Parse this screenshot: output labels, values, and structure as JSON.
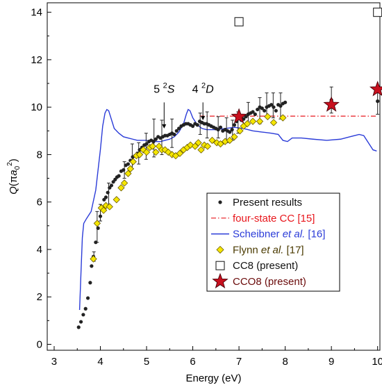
{
  "chart_data": {
    "type": "scatter",
    "xlabel": "Energy (eV)",
    "ylabel_parts": {
      "q": "Q",
      "open": "(π",
      "a": "a",
      "sub": "0",
      "sup": "2",
      "close": ")"
    },
    "xlim": [
      2.85,
      10.05
    ],
    "ylim": [
      -0.25,
      14.4
    ],
    "xticks": [
      3,
      4,
      5,
      6,
      7,
      8,
      9,
      10
    ],
    "yticks": [
      0,
      2,
      4,
      6,
      8,
      10,
      12,
      14
    ],
    "grid": false,
    "legend_position": "lower-right",
    "annotations": [
      {
        "pre": "5",
        "sup": "2",
        "sym": "S",
        "x": 5.38,
        "y_text": 10.6,
        "y_arrow_start": 10.2,
        "y_arrow_end": 9.1
      },
      {
        "pre": "4",
        "sup": "2",
        "sym": "D",
        "x": 6.22,
        "y_text": 10.6,
        "y_arrow_start": 10.2,
        "y_arrow_end": 9.45
      }
    ],
    "series": [
      {
        "name": "Present results",
        "marker": "dot",
        "color": "#222222",
        "points": [
          [
            3.53,
            0.72
          ],
          [
            3.58,
            0.95
          ],
          [
            3.63,
            1.25
          ],
          [
            3.68,
            1.5
          ],
          [
            3.73,
            1.95
          ],
          [
            3.78,
            2.6
          ],
          [
            3.81,
            3.3
          ],
          [
            3.85,
            3.7
          ],
          [
            3.9,
            4.3
          ],
          [
            3.95,
            4.9
          ],
          [
            4.0,
            5.4
          ],
          [
            4.04,
            5.7
          ],
          [
            4.08,
            6.1
          ],
          [
            4.12,
            6.2
          ],
          [
            4.16,
            6.4
          ],
          [
            4.2,
            6.6
          ],
          [
            4.24,
            6.7
          ],
          [
            4.28,
            6.85
          ],
          [
            4.32,
            6.95
          ],
          [
            4.36,
            7.05
          ],
          [
            4.4,
            7.1
          ],
          [
            4.45,
            7.3
          ],
          [
            4.5,
            7.35
          ],
          [
            4.55,
            7.55
          ],
          [
            4.6,
            7.6
          ],
          [
            4.65,
            7.75
          ],
          [
            4.7,
            7.9
          ],
          [
            4.75,
            7.95
          ],
          [
            4.8,
            8.05
          ],
          [
            4.85,
            8.2
          ],
          [
            4.9,
            8.3
          ],
          [
            4.95,
            8.4
          ],
          [
            5.0,
            8.45
          ],
          [
            5.05,
            8.55
          ],
          [
            5.1,
            8.6
          ],
          [
            5.15,
            8.55
          ],
          [
            5.2,
            8.65
          ],
          [
            5.25,
            8.75
          ],
          [
            5.3,
            8.7
          ],
          [
            5.35,
            8.75
          ],
          [
            5.4,
            8.8
          ],
          [
            5.45,
            8.8
          ],
          [
            5.5,
            8.85
          ],
          [
            5.55,
            8.9
          ],
          [
            5.6,
            8.85
          ],
          [
            5.65,
            9.0
          ],
          [
            5.7,
            9.1
          ],
          [
            5.75,
            9.2
          ],
          [
            5.8,
            9.25
          ],
          [
            5.85,
            9.3
          ],
          [
            5.9,
            9.3
          ],
          [
            5.95,
            9.25
          ],
          [
            6.0,
            9.2
          ],
          [
            6.05,
            9.3
          ],
          [
            6.1,
            9.25
          ],
          [
            6.15,
            9.4
          ],
          [
            6.2,
            9.35
          ],
          [
            6.25,
            9.3
          ],
          [
            6.3,
            9.3
          ],
          [
            6.35,
            9.25
          ],
          [
            6.4,
            9.2
          ],
          [
            6.45,
            9.15
          ],
          [
            6.5,
            9.1
          ],
          [
            6.55,
            9.05
          ],
          [
            6.6,
            9.15
          ],
          [
            6.65,
            9.0
          ],
          [
            6.7,
            9.05
          ],
          [
            6.75,
            9.0
          ],
          [
            6.8,
            8.95
          ],
          [
            6.85,
            9.05
          ],
          [
            6.9,
            9.25
          ],
          [
            6.95,
            9.4
          ],
          [
            7.05,
            9.45
          ],
          [
            7.1,
            9.5
          ],
          [
            7.15,
            9.6
          ],
          [
            7.2,
            9.7
          ],
          [
            7.25,
            9.75
          ],
          [
            7.3,
            9.8
          ],
          [
            7.35,
            9.7
          ],
          [
            7.4,
            9.9
          ],
          [
            7.45,
            10.0
          ],
          [
            7.5,
            9.95
          ],
          [
            7.55,
            9.85
          ],
          [
            7.6,
            10.0
          ],
          [
            7.65,
            10.05
          ],
          [
            7.7,
            10.1
          ],
          [
            7.75,
            10.0
          ],
          [
            7.8,
            9.85
          ],
          [
            7.85,
            10.1
          ],
          [
            7.9,
            10.05
          ],
          [
            7.95,
            10.15
          ],
          [
            8.0,
            10.2
          ],
          [
            9.0,
            10.3
          ],
          [
            10.0,
            10.25
          ]
        ],
        "error_bars": [
          [
            3.86,
            3.5,
            3.9
          ],
          [
            3.93,
            4.3,
            5.6
          ],
          [
            4.0,
            5.2,
            5.9
          ],
          [
            4.18,
            5.8,
            6.8
          ],
          [
            4.52,
            7.0,
            7.7
          ],
          [
            4.69,
            7.4,
            8.45
          ],
          [
            4.83,
            7.6,
            8.5
          ],
          [
            4.99,
            7.8,
            8.9
          ],
          [
            5.16,
            7.9,
            9.5
          ],
          [
            5.33,
            8.0,
            9.45
          ],
          [
            5.55,
            8.3,
            9.5
          ],
          [
            6.16,
            8.85,
            9.75
          ],
          [
            6.31,
            8.7,
            9.8
          ],
          [
            6.55,
            8.7,
            9.6
          ],
          [
            6.73,
            8.5,
            9.55
          ],
          [
            6.86,
            8.6,
            9.45
          ],
          [
            6.98,
            8.9,
            9.8
          ],
          [
            7.2,
            9.3,
            10.2
          ],
          [
            7.45,
            9.3,
            10.4
          ],
          [
            7.6,
            9.6,
            10.6
          ],
          [
            7.74,
            9.55,
            10.6
          ],
          [
            7.9,
            9.5,
            10.6
          ],
          [
            9.0,
            9.75,
            10.85
          ],
          [
            10.0,
            9.7,
            10.85
          ]
        ]
      },
      {
        "name": "four-state CC [15]",
        "line": "dashdot",
        "color": "#e8161c",
        "points": [
          [
            6.15,
            9.62
          ],
          [
            10.0,
            9.62
          ]
        ]
      },
      {
        "name": "Scheibner et al. [16]",
        "line": "solid",
        "color": "#2a3bd8",
        "points": [
          [
            3.55,
            1.45
          ],
          [
            3.58,
            3.0
          ],
          [
            3.61,
            4.5
          ],
          [
            3.64,
            5.1
          ],
          [
            3.7,
            5.3
          ],
          [
            3.8,
            5.6
          ],
          [
            3.9,
            6.5
          ],
          [
            4.0,
            8.2
          ],
          [
            4.05,
            9.2
          ],
          [
            4.1,
            9.75
          ],
          [
            4.14,
            9.9
          ],
          [
            4.18,
            9.85
          ],
          [
            4.22,
            9.6
          ],
          [
            4.3,
            9.1
          ],
          [
            4.4,
            8.9
          ],
          [
            4.5,
            8.75
          ],
          [
            4.6,
            8.7
          ],
          [
            4.7,
            8.65
          ],
          [
            4.8,
            8.6
          ],
          [
            4.9,
            8.6
          ],
          [
            5.0,
            8.6
          ],
          [
            5.1,
            8.55
          ],
          [
            5.2,
            8.55
          ],
          [
            5.3,
            8.55
          ],
          [
            5.4,
            8.6
          ],
          [
            5.5,
            8.65
          ],
          [
            5.6,
            8.75
          ],
          [
            5.7,
            8.95
          ],
          [
            5.8,
            9.3
          ],
          [
            5.86,
            9.7
          ],
          [
            5.9,
            9.9
          ],
          [
            5.94,
            9.85
          ],
          [
            6.0,
            9.55
          ],
          [
            6.1,
            9.25
          ],
          [
            6.2,
            9.1
          ],
          [
            6.3,
            9.05
          ],
          [
            6.5,
            9.05
          ],
          [
            6.7,
            9.1
          ],
          [
            6.9,
            9.15
          ],
          [
            7.1,
            9.1
          ],
          [
            7.3,
            9.0
          ],
          [
            7.5,
            8.95
          ],
          [
            7.7,
            8.9
          ],
          [
            7.85,
            8.85
          ],
          [
            7.95,
            8.6
          ],
          [
            8.05,
            8.55
          ],
          [
            8.15,
            8.7
          ],
          [
            8.35,
            8.7
          ],
          [
            8.6,
            8.65
          ],
          [
            8.9,
            8.6
          ],
          [
            9.2,
            8.65
          ],
          [
            9.4,
            8.75
          ],
          [
            9.6,
            8.85
          ],
          [
            9.7,
            8.8
          ],
          [
            9.8,
            8.5
          ],
          [
            9.9,
            8.2
          ],
          [
            9.98,
            8.15
          ]
        ]
      },
      {
        "name": "Flynn et al. [17]",
        "marker": "diamond",
        "color": "#f5e600",
        "points": [
          [
            3.85,
            3.6
          ],
          [
            3.93,
            5.1
          ],
          [
            4.02,
            5.75
          ],
          [
            4.07,
            5.65
          ],
          [
            4.12,
            5.85
          ],
          [
            4.2,
            5.8
          ],
          [
            4.35,
            6.1
          ],
          [
            4.45,
            6.6
          ],
          [
            4.52,
            6.8
          ],
          [
            4.6,
            7.2
          ],
          [
            4.65,
            7.4
          ],
          [
            4.71,
            7.7
          ],
          [
            4.78,
            7.95
          ],
          [
            4.85,
            8.0
          ],
          [
            4.93,
            8.2
          ],
          [
            5.0,
            8.1
          ],
          [
            5.07,
            8.3
          ],
          [
            5.13,
            8.35
          ],
          [
            5.2,
            8.1
          ],
          [
            5.27,
            8.35
          ],
          [
            5.33,
            8.2
          ],
          [
            5.4,
            8.2
          ],
          [
            5.47,
            8.1
          ],
          [
            5.55,
            8.0
          ],
          [
            5.63,
            7.95
          ],
          [
            5.72,
            8.05
          ],
          [
            5.8,
            8.2
          ],
          [
            5.88,
            8.3
          ],
          [
            5.95,
            8.4
          ],
          [
            6.05,
            8.35
          ],
          [
            6.12,
            8.5
          ],
          [
            6.18,
            8.2
          ],
          [
            6.25,
            8.4
          ],
          [
            6.32,
            8.35
          ],
          [
            6.42,
            8.6
          ],
          [
            6.52,
            8.5
          ],
          [
            6.6,
            8.45
          ],
          [
            6.7,
            8.55
          ],
          [
            6.8,
            8.6
          ],
          [
            6.9,
            8.75
          ],
          [
            7.02,
            9.0
          ],
          [
            7.1,
            9.2
          ],
          [
            7.18,
            9.3
          ],
          [
            7.3,
            9.4
          ],
          [
            7.45,
            9.4
          ],
          [
            7.62,
            9.6
          ],
          [
            7.75,
            9.35
          ],
          [
            7.95,
            9.55
          ]
        ]
      },
      {
        "name": "CC8 (present)",
        "marker": "square",
        "color": "#222222",
        "points": [
          [
            7.0,
            13.6
          ],
          [
            10.0,
            14.0
          ]
        ]
      },
      {
        "name": "CCO8 (present)",
        "marker": "star",
        "color": "#c8101e",
        "points": [
          [
            7.0,
            9.6
          ],
          [
            9.0,
            10.1
          ],
          [
            10.0,
            10.75
          ]
        ]
      }
    ],
    "legend": [
      {
        "type": "dot",
        "text": "Present results",
        "color": "#111111"
      },
      {
        "type": "dashdot",
        "text": "four-state CC [15]",
        "color": "#e8161c"
      },
      {
        "type": "line",
        "pre": "Scheibner ",
        "ital": "et al.",
        "post": " [16]",
        "color": "#2a3bd8"
      },
      {
        "type": "diamond",
        "pre": "Flynn ",
        "ital": "et al.",
        "post": " [17]",
        "color": "#4a3a00"
      },
      {
        "type": "square",
        "text": "CC8 (present)",
        "color": "#111111"
      },
      {
        "type": "star",
        "text": "CCO8 (present)",
        "color": "#6a0a0a"
      }
    ]
  }
}
